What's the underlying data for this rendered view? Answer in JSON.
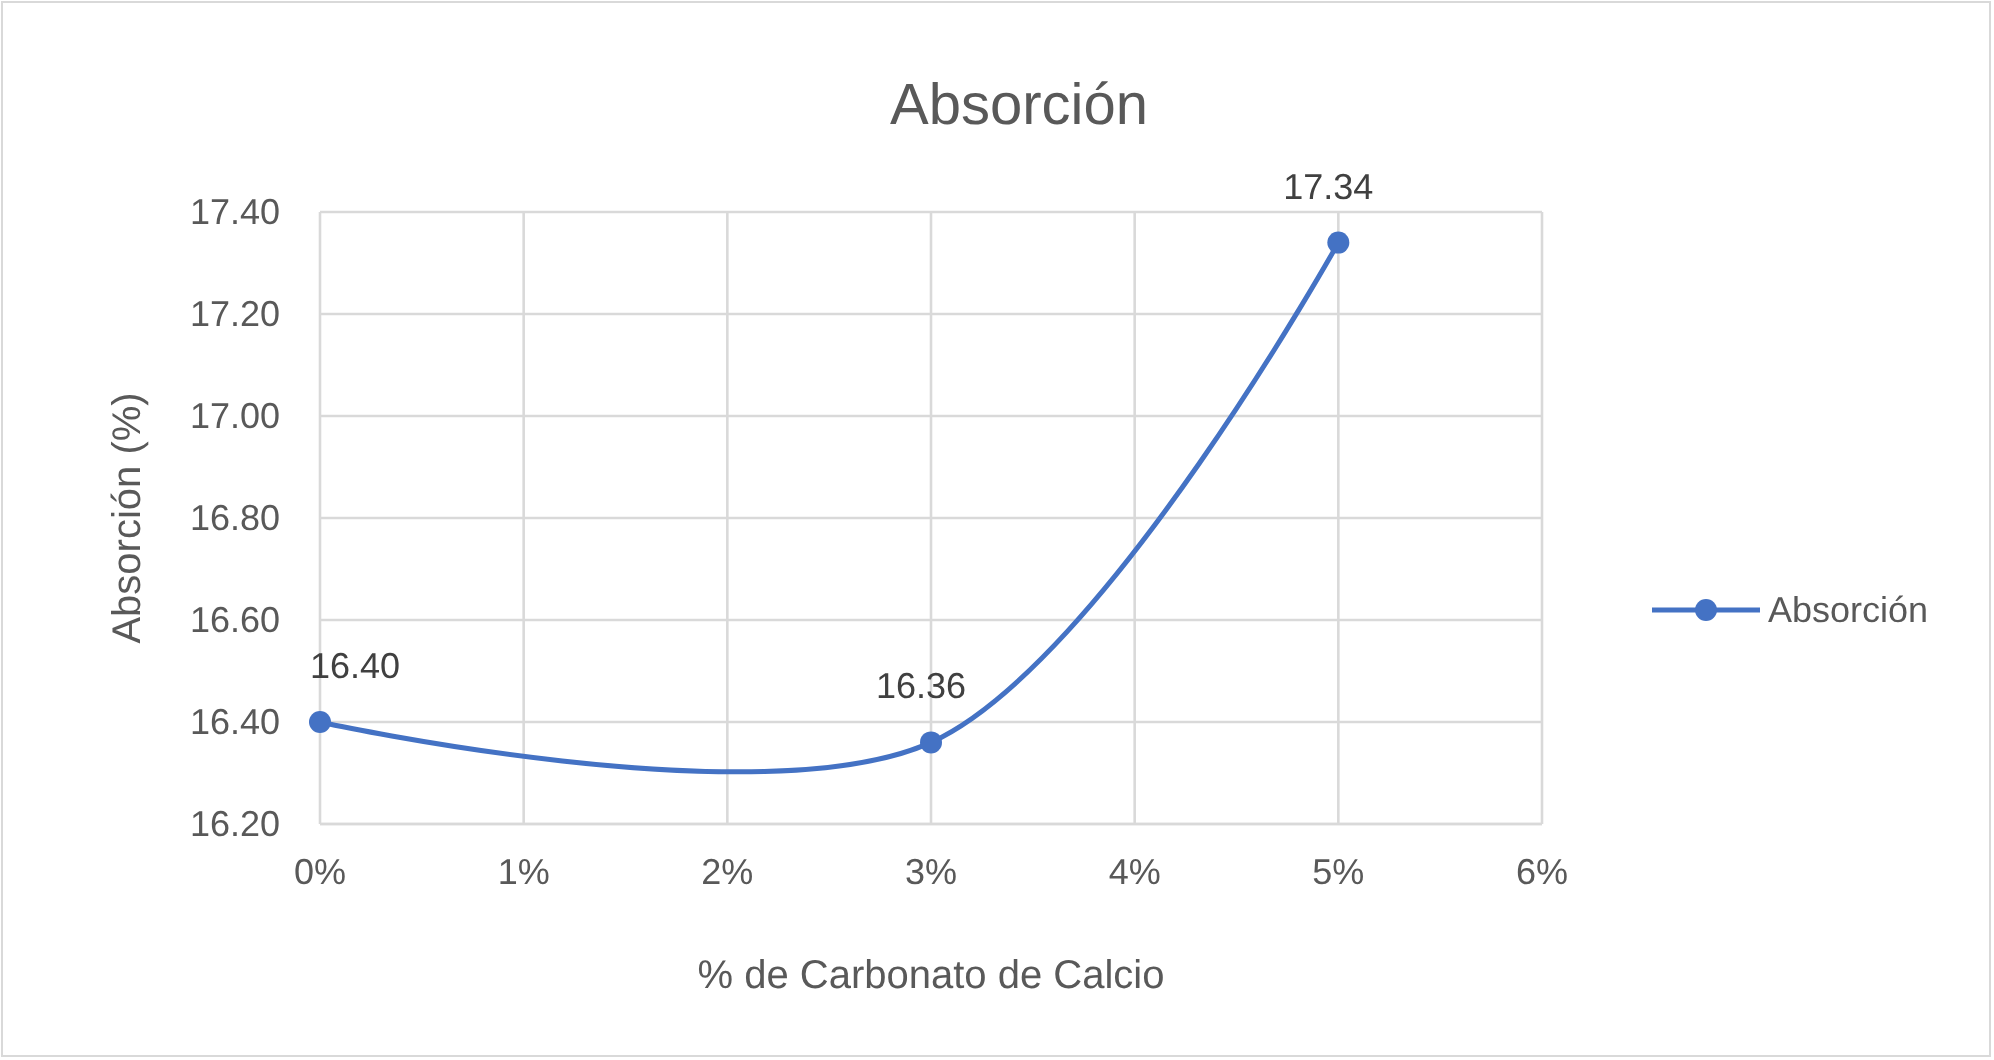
{
  "chart_data": {
    "type": "line",
    "title": "Absorción",
    "xlabel": "% de Carbonato de Calcio",
    "ylabel": "Absorción (%)",
    "x": [
      0,
      3,
      5
    ],
    "series": [
      {
        "name": "Absorción",
        "color": "#4472c4",
        "values": [
          16.4,
          16.36,
          17.34
        ],
        "value_labels": [
          "16.40",
          "16.36",
          "17.34"
        ]
      }
    ],
    "xlim": [
      0,
      6
    ],
    "xticks": [
      {
        "value": 0,
        "label": "0%"
      },
      {
        "value": 1,
        "label": "1%"
      },
      {
        "value": 2,
        "label": "2%"
      },
      {
        "value": 3,
        "label": "3%"
      },
      {
        "value": 4,
        "label": "4%"
      },
      {
        "value": 5,
        "label": "5%"
      },
      {
        "value": 6,
        "label": "6%"
      }
    ],
    "ylim": [
      16.2,
      17.4
    ],
    "yticks": [
      {
        "value": 16.2,
        "label": "16.20"
      },
      {
        "value": 16.4,
        "label": "16.40"
      },
      {
        "value": 16.6,
        "label": "16.60"
      },
      {
        "value": 16.8,
        "label": "16.80"
      },
      {
        "value": 17.0,
        "label": "17.00"
      },
      {
        "value": 17.2,
        "label": "17.20"
      },
      {
        "value": 17.4,
        "label": "17.40"
      }
    ],
    "grid": true,
    "legend": "right",
    "marker": "circle",
    "line_style": "solid"
  }
}
